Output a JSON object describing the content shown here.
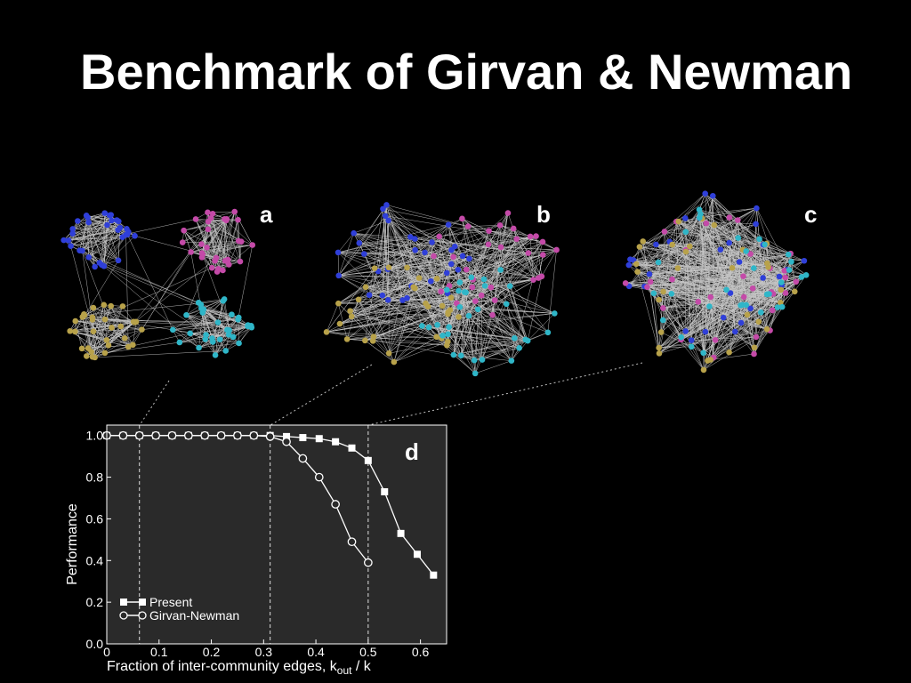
{
  "slide": {
    "title": "Benchmark of Girvan & Newman"
  },
  "networks": [
    {
      "label": "a"
    },
    {
      "label": "b"
    },
    {
      "label": "c"
    }
  ],
  "colors": {
    "background": "#000000",
    "plot_bg": "#2a2a2a",
    "edges": "#e8e8e8",
    "community_blue": "#2f3fd9",
    "community_magenta": "#c44aa8",
    "community_olive": "#b8a24a",
    "community_cyan": "#2fb6c8"
  },
  "chart_data": {
    "type": "line",
    "panel_label": "d",
    "xlabel": "Fraction of inter-community edges, k",
    "xlabel_sub": "out",
    "xlabel_tail": " / k",
    "ylabel": "Performance",
    "xlim": [
      0,
      0.65
    ],
    "ylim": [
      0,
      1.05
    ],
    "xticks": [
      0,
      0.1,
      0.2,
      0.3,
      0.4,
      0.5,
      0.6
    ],
    "xtick_labels": [
      "0",
      "0.1",
      "0.2",
      "0.3",
      "0.4",
      "0.5",
      "0.6"
    ],
    "yticks": [
      0,
      0.2,
      0.4,
      0.6,
      0.8,
      1.0
    ],
    "ytick_labels": [
      "0.0",
      "0.2",
      "0.4",
      "0.6",
      "0.8",
      "1.0"
    ],
    "vlines": [
      0.0625,
      0.3125,
      0.5
    ],
    "legend_position": "bottom-left",
    "series": [
      {
        "name": "Present",
        "marker": "square-filled",
        "x": [
          0,
          0.0313,
          0.0625,
          0.0938,
          0.125,
          0.1563,
          0.1875,
          0.2188,
          0.25,
          0.2813,
          0.3125,
          0.3438,
          0.375,
          0.4063,
          0.4375,
          0.4688,
          0.5,
          0.5313,
          0.5625,
          0.5938,
          0.625
        ],
        "y": [
          1.0,
          1.0,
          1.0,
          1.0,
          1.0,
          1.0,
          1.0,
          1.0,
          1.0,
          1.0,
          1.0,
          0.995,
          0.99,
          0.985,
          0.97,
          0.94,
          0.88,
          0.73,
          0.53,
          0.43,
          0.33
        ]
      },
      {
        "name": "Girvan-Newman",
        "marker": "circle-open",
        "x": [
          0,
          0.0313,
          0.0625,
          0.0938,
          0.125,
          0.1563,
          0.1875,
          0.2188,
          0.25,
          0.2813,
          0.3125,
          0.3438,
          0.375,
          0.4063,
          0.4375,
          0.4688,
          0.5
        ],
        "y": [
          1.0,
          1.0,
          1.0,
          1.0,
          1.0,
          1.0,
          1.0,
          1.0,
          1.0,
          1.0,
          0.995,
          0.97,
          0.89,
          0.8,
          0.67,
          0.49,
          0.39
        ]
      }
    ]
  }
}
